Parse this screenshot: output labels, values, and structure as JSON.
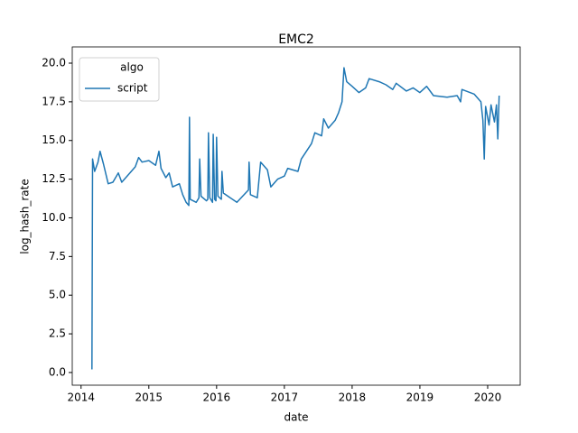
{
  "chart_data": {
    "type": "line",
    "title": "EMC2",
    "x_label": "date",
    "y_label": "log_hash_rate",
    "legend_title": "algo",
    "legend": "upper left",
    "grid": false,
    "xlim": [
      2013.87,
      2020.48
    ],
    "ylim": [
      -0.82,
      21.05
    ],
    "xticks": [
      2014,
      2015,
      2016,
      2017,
      2018,
      2019,
      2020
    ],
    "yticks": [
      {
        "value": 0,
        "label": "0.0"
      },
      2.5,
      {
        "value": 5,
        "label": "5.0"
      },
      7.5,
      {
        "value": 10,
        "label": "10.0"
      },
      12.5,
      {
        "value": 15,
        "label": "15.0"
      },
      17.5,
      {
        "value": 20,
        "label": "20.0"
      }
    ],
    "x": [
      2014.16,
      2014.17,
      2014.2,
      2014.25,
      2014.28,
      2014.33,
      2014.4,
      2014.47,
      2014.55,
      2014.6,
      2014.7,
      2014.8,
      2014.85,
      2014.9,
      2015.0,
      2015.1,
      2015.15,
      2015.18,
      2015.25,
      2015.3,
      2015.35,
      2015.45,
      2015.5,
      2015.55,
      2015.59,
      2015.6,
      2015.61,
      2015.7,
      2015.74,
      2015.75,
      2015.77,
      2015.85,
      2015.87,
      2015.88,
      2015.9,
      2015.94,
      2015.95,
      2015.97,
      2015.99,
      2016.0,
      2016.02,
      2016.07,
      2016.08,
      2016.1,
      2016.3,
      2016.47,
      2016.48,
      2016.5,
      2016.6,
      2016.65,
      2016.75,
      2016.8,
      2016.9,
      2017.0,
      2017.05,
      2017.2,
      2017.25,
      2017.4,
      2017.45,
      2017.55,
      2017.58,
      2017.65,
      2017.75,
      2017.8,
      2017.85,
      2017.88,
      2017.92,
      2018.0,
      2018.1,
      2018.2,
      2018.25,
      2018.4,
      2018.5,
      2018.6,
      2018.65,
      2018.8,
      2018.9,
      2019.0,
      2019.1,
      2019.2,
      2019.4,
      2019.55,
      2019.6,
      2019.62,
      2019.8,
      2019.9,
      2019.93,
      2019.95,
      2019.97,
      2020.02,
      2020.05,
      2020.1,
      2020.13,
      2020.15,
      2020.17
    ],
    "series": [
      {
        "name": "script",
        "color": "#1f77b4",
        "values": [
          0.2,
          13.8,
          13.0,
          13.6,
          14.3,
          13.5,
          12.2,
          12.3,
          12.9,
          12.3,
          12.8,
          13.3,
          13.9,
          13.6,
          13.7,
          13.4,
          14.3,
          13.2,
          12.6,
          12.9,
          12.0,
          12.2,
          11.5,
          11.0,
          10.8,
          16.5,
          11.2,
          11.0,
          11.3,
          13.8,
          11.4,
          11.1,
          11.2,
          15.5,
          11.3,
          11.0,
          15.4,
          11.2,
          11.1,
          15.2,
          11.4,
          11.2,
          13.0,
          11.6,
          11.0,
          11.8,
          13.6,
          11.5,
          11.3,
          13.6,
          13.1,
          12.0,
          12.5,
          12.7,
          13.2,
          13.0,
          13.8,
          14.8,
          15.5,
          15.3,
          16.4,
          15.8,
          16.3,
          16.8,
          17.5,
          19.7,
          18.8,
          18.5,
          18.1,
          18.4,
          19.0,
          18.8,
          18.6,
          18.3,
          18.7,
          18.2,
          18.4,
          18.1,
          18.5,
          17.9,
          17.8,
          17.9,
          17.5,
          18.3,
          18.0,
          17.5,
          16.3,
          13.8,
          17.2,
          16.0,
          17.3,
          16.2,
          17.3,
          15.1,
          17.9
        ]
      }
    ]
  }
}
